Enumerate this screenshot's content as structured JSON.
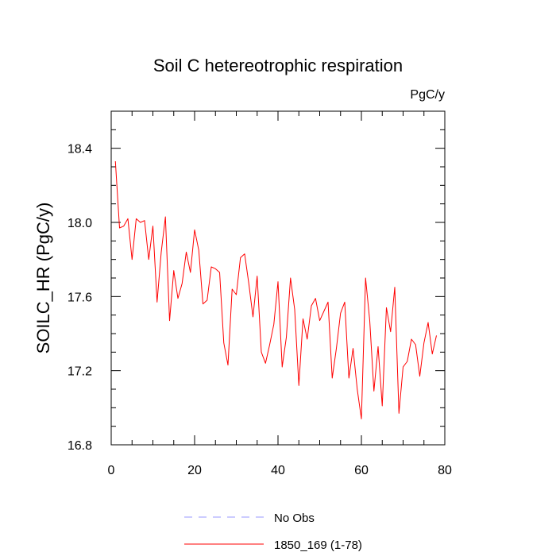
{
  "chart_data": {
    "type": "line",
    "title": "Soil C hetereotrophic respiration",
    "units": "PgC/y",
    "xlabel": "",
    "ylabel": "SOILC_HR  (PgC/y)",
    "xlim": [
      0,
      80
    ],
    "ylim": [
      16.8,
      18.6
    ],
    "x_ticks": [
      0,
      20,
      40,
      60,
      80
    ],
    "y_ticks": [
      16.8,
      17.2,
      17.6,
      18.0,
      18.4
    ],
    "x_tick_labels": [
      "0",
      "20",
      "40",
      "60",
      "80"
    ],
    "y_tick_labels": [
      "16.8",
      "17.2",
      "17.6",
      "18.0",
      "18.4"
    ],
    "grid": false,
    "legend_position": "bottom",
    "series": [
      {
        "name": "No Obs",
        "color": "#9999ff",
        "dash": "dashed",
        "x": [],
        "values": []
      },
      {
        "name": "1850_169 (1-78)",
        "color": "#ff0000",
        "dash": "solid",
        "x": [
          1,
          2,
          3,
          4,
          5,
          6,
          7,
          8,
          9,
          10,
          11,
          12,
          13,
          14,
          15,
          16,
          17,
          18,
          19,
          20,
          21,
          22,
          23,
          24,
          25,
          26,
          27,
          28,
          29,
          30,
          31,
          32,
          33,
          34,
          35,
          36,
          37,
          38,
          39,
          40,
          41,
          42,
          43,
          44,
          45,
          46,
          47,
          48,
          49,
          50,
          51,
          52,
          53,
          54,
          55,
          56,
          57,
          58,
          59,
          60,
          61,
          62,
          63,
          64,
          65,
          66,
          67,
          68,
          69,
          70,
          71,
          72,
          73,
          74,
          75,
          76,
          77,
          78
        ],
        "values": [
          18.33,
          17.97,
          17.98,
          18.02,
          17.8,
          18.02,
          18.0,
          18.01,
          17.8,
          17.98,
          17.57,
          17.84,
          18.03,
          17.47,
          17.74,
          17.59,
          17.67,
          17.84,
          17.73,
          17.96,
          17.85,
          17.56,
          17.58,
          17.76,
          17.75,
          17.73,
          17.35,
          17.23,
          17.64,
          17.61,
          17.81,
          17.83,
          17.67,
          17.49,
          17.71,
          17.3,
          17.24,
          17.34,
          17.45,
          17.68,
          17.22,
          17.38,
          17.7,
          17.53,
          17.12,
          17.48,
          17.37,
          17.55,
          17.59,
          17.47,
          17.52,
          17.57,
          17.16,
          17.32,
          17.51,
          17.57,
          17.16,
          17.32,
          17.1,
          16.94,
          17.7,
          17.47,
          17.09,
          17.33,
          17.01,
          17.54,
          17.41,
          17.65,
          16.97,
          17.22,
          17.25,
          17.37,
          17.34,
          17.17,
          17.35,
          17.46,
          17.29,
          17.39
        ]
      }
    ]
  }
}
